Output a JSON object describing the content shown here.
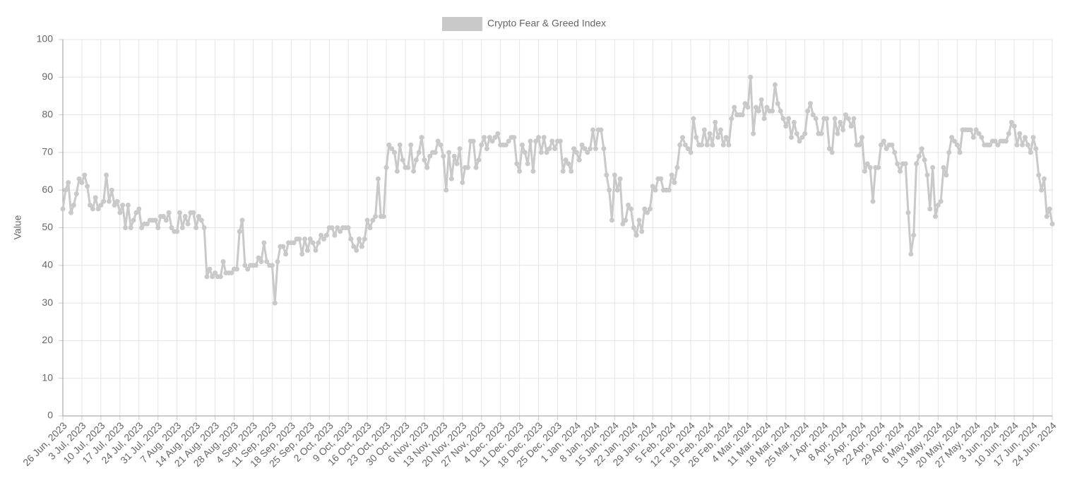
{
  "chart_data": {
    "type": "line",
    "y_label": "Value",
    "ylim": [
      0,
      100
    ],
    "yticks": [
      0,
      10,
      20,
      30,
      40,
      50,
      60,
      70,
      80,
      90,
      100
    ],
    "grid": true,
    "legend": "top",
    "x": [
      "26 Jun, 2023",
      "27 Jun, 2023",
      "28 Jun, 2023",
      "29 Jun, 2023",
      "30 Jun, 2023",
      "1 Jul, 2023",
      "2 Jul, 2023",
      "3 Jul, 2023",
      "4 Jul, 2023",
      "5 Jul, 2023",
      "6 Jul, 2023",
      "7 Jul, 2023",
      "8 Jul, 2023",
      "9 Jul, 2023",
      "10 Jul, 2023",
      "11 Jul, 2023",
      "12 Jul, 2023",
      "13 Jul, 2023",
      "14 Jul, 2023",
      "15 Jul, 2023",
      "16 Jul, 2023",
      "17 Jul, 2023",
      "18 Jul, 2023",
      "19 Jul, 2023",
      "20 Jul, 2023",
      "21 Jul, 2023",
      "22 Jul, 2023",
      "23 Jul, 2023",
      "24 Jul, 2023",
      "25 Jul, 2023",
      "26 Jul, 2023",
      "27 Jul, 2023",
      "28 Jul, 2023",
      "29 Jul, 2023",
      "30 Jul, 2023",
      "31 Jul, 2023",
      "1 Aug, 2023",
      "2 Aug, 2023",
      "3 Aug, 2023",
      "4 Aug, 2023",
      "5 Aug, 2023",
      "6 Aug, 2023",
      "7 Aug, 2023",
      "8 Aug, 2023",
      "9 Aug, 2023",
      "10 Aug, 2023",
      "11 Aug, 2023",
      "12 Aug, 2023",
      "13 Aug, 2023",
      "14 Aug, 2023",
      "15 Aug, 2023",
      "16 Aug, 2023",
      "17 Aug, 2023",
      "18 Aug, 2023",
      "19 Aug, 2023",
      "20 Aug, 2023",
      "21 Aug, 2023",
      "22 Aug, 2023",
      "23 Aug, 2023",
      "24 Aug, 2023",
      "25 Aug, 2023",
      "26 Aug, 2023",
      "27 Aug, 2023",
      "28 Aug, 2023",
      "29 Aug, 2023",
      "30 Aug, 2023",
      "31 Aug, 2023",
      "1 Sep, 2023",
      "2 Sep, 2023",
      "3 Sep, 2023",
      "4 Sep, 2023",
      "5 Sep, 2023",
      "6 Sep, 2023",
      "7 Sep, 2023",
      "8 Sep, 2023",
      "9 Sep, 2023",
      "10 Sep, 2023",
      "11 Sep, 2023",
      "12 Sep, 2023",
      "13 Sep, 2023",
      "14 Sep, 2023",
      "15 Sep, 2023",
      "16 Sep, 2023",
      "17 Sep, 2023",
      "18 Sep, 2023",
      "19 Sep, 2023",
      "20 Sep, 2023",
      "21 Sep, 2023",
      "22 Sep, 2023",
      "23 Sep, 2023",
      "24 Sep, 2023",
      "25 Sep, 2023",
      "26 Sep, 2023",
      "27 Sep, 2023",
      "28 Sep, 2023",
      "29 Sep, 2023",
      "30 Sep, 2023",
      "1 Oct, 2023",
      "2 Oct, 2023",
      "3 Oct, 2023",
      "4 Oct, 2023",
      "5 Oct, 2023",
      "6 Oct, 2023",
      "7 Oct, 2023",
      "8 Oct, 2023",
      "9 Oct, 2023",
      "10 Oct, 2023",
      "11 Oct, 2023",
      "12 Oct, 2023",
      "13 Oct, 2023",
      "14 Oct, 2023",
      "15 Oct, 2023",
      "16 Oct, 2023",
      "17 Oct, 2023",
      "18 Oct, 2023",
      "19 Oct, 2023",
      "20 Oct, 2023",
      "21 Oct, 2023",
      "22 Oct, 2023",
      "23 Oct, 2023",
      "24 Oct, 2023",
      "25 Oct, 2023",
      "26 Oct, 2023",
      "27 Oct, 2023",
      "28 Oct, 2023",
      "29 Oct, 2023",
      "30 Oct, 2023",
      "31 Oct, 2023",
      "1 Nov, 2023",
      "2 Nov, 2023",
      "3 Nov, 2023",
      "4 Nov, 2023",
      "5 Nov, 2023",
      "6 Nov, 2023",
      "7 Nov, 2023",
      "8 Nov, 2023",
      "9 Nov, 2023",
      "10 Nov, 2023",
      "11 Nov, 2023",
      "12 Nov, 2023",
      "13 Nov, 2023",
      "14 Nov, 2023",
      "15 Nov, 2023",
      "16 Nov, 2023",
      "17 Nov, 2023",
      "18 Nov, 2023",
      "19 Nov, 2023",
      "20 Nov, 2023",
      "21 Nov, 2023",
      "22 Nov, 2023",
      "23 Nov, 2023",
      "24 Nov, 2023",
      "25 Nov, 2023",
      "26 Nov, 2023",
      "27 Nov, 2023",
      "28 Nov, 2023",
      "29 Nov, 2023",
      "30 Nov, 2023",
      "1 Dec, 2023",
      "2 Dec, 2023",
      "3 Dec, 2023",
      "4 Dec, 2023",
      "5 Dec, 2023",
      "6 Dec, 2023",
      "7 Dec, 2023",
      "8 Dec, 2023",
      "9 Dec, 2023",
      "10 Dec, 2023",
      "11 Dec, 2023",
      "12 Dec, 2023",
      "13 Dec, 2023",
      "14 Dec, 2023",
      "15 Dec, 2023",
      "16 Dec, 2023",
      "17 Dec, 2023",
      "18 Dec, 2023",
      "19 Dec, 2023",
      "20 Dec, 2023",
      "21 Dec, 2023",
      "22 Dec, 2023",
      "23 Dec, 2023",
      "24 Dec, 2023",
      "25 Dec, 2023",
      "26 Dec, 2023",
      "27 Dec, 2023",
      "28 Dec, 2023",
      "29 Dec, 2023",
      "30 Dec, 2023",
      "31 Dec, 2023",
      "1 Jan, 2024",
      "2 Jan, 2024",
      "3 Jan, 2024",
      "4 Jan, 2024",
      "5 Jan, 2024",
      "6 Jan, 2024",
      "7 Jan, 2024",
      "8 Jan, 2024",
      "9 Jan, 2024",
      "10 Jan, 2024",
      "11 Jan, 2024",
      "12 Jan, 2024",
      "13 Jan, 2024",
      "14 Jan, 2024",
      "15 Jan, 2024",
      "16 Jan, 2024",
      "17 Jan, 2024",
      "18 Jan, 2024",
      "19 Jan, 2024",
      "20 Jan, 2024",
      "21 Jan, 2024",
      "22 Jan, 2024",
      "23 Jan, 2024",
      "24 Jan, 2024",
      "25 Jan, 2024",
      "26 Jan, 2024",
      "27 Jan, 2024",
      "28 Jan, 2024",
      "29 Jan, 2024",
      "30 Jan, 2024",
      "31 Jan, 2024",
      "1 Feb, 2024",
      "2 Feb, 2024",
      "3 Feb, 2024",
      "4 Feb, 2024",
      "5 Feb, 2024",
      "6 Feb, 2024",
      "7 Feb, 2024",
      "8 Feb, 2024",
      "9 Feb, 2024",
      "10 Feb, 2024",
      "11 Feb, 2024",
      "12 Feb, 2024",
      "13 Feb, 2024",
      "14 Feb, 2024",
      "15 Feb, 2024",
      "16 Feb, 2024",
      "17 Feb, 2024",
      "18 Feb, 2024",
      "19 Feb, 2024",
      "20 Feb, 2024",
      "21 Feb, 2024",
      "22 Feb, 2024",
      "23 Feb, 2024",
      "24 Feb, 2024",
      "25 Feb, 2024",
      "26 Feb, 2024",
      "27 Feb, 2024",
      "28 Feb, 2024",
      "29 Feb, 2024",
      "1 Mar, 2024",
      "2 Mar, 2024",
      "3 Mar, 2024",
      "4 Mar, 2024",
      "5 Mar, 2024",
      "6 Mar, 2024",
      "7 Mar, 2024",
      "8 Mar, 2024",
      "9 Mar, 2024",
      "10 Mar, 2024",
      "11 Mar, 2024",
      "12 Mar, 2024",
      "13 Mar, 2024",
      "14 Mar, 2024",
      "15 Mar, 2024",
      "16 Mar, 2024",
      "17 Mar, 2024",
      "18 Mar, 2024",
      "19 Mar, 2024",
      "20 Mar, 2024",
      "21 Mar, 2024",
      "22 Mar, 2024",
      "23 Mar, 2024",
      "24 Mar, 2024",
      "25 Mar, 2024",
      "26 Mar, 2024",
      "27 Mar, 2024",
      "28 Mar, 2024",
      "29 Mar, 2024",
      "30 Mar, 2024",
      "31 Mar, 2024",
      "1 Apr, 2024",
      "2 Apr, 2024",
      "3 Apr, 2024",
      "4 Apr, 2024",
      "5 Apr, 2024",
      "6 Apr, 2024",
      "7 Apr, 2024",
      "8 Apr, 2024",
      "9 Apr, 2024",
      "10 Apr, 2024",
      "11 Apr, 2024",
      "12 Apr, 2024",
      "13 Apr, 2024",
      "14 Apr, 2024",
      "15 Apr, 2024",
      "16 Apr, 2024",
      "17 Apr, 2024",
      "18 Apr, 2024",
      "19 Apr, 2024",
      "20 Apr, 2024",
      "21 Apr, 2024",
      "22 Apr, 2024",
      "23 Apr, 2024",
      "24 Apr, 2024",
      "25 Apr, 2024",
      "26 Apr, 2024",
      "27 Apr, 2024",
      "28 Apr, 2024",
      "29 Apr, 2024",
      "30 Apr, 2024",
      "1 May, 2024",
      "2 May, 2024",
      "3 May, 2024",
      "4 May, 2024",
      "5 May, 2024",
      "6 May, 2024",
      "7 May, 2024",
      "8 May, 2024",
      "9 May, 2024",
      "10 May, 2024",
      "11 May, 2024",
      "12 May, 2024",
      "13 May, 2024",
      "14 May, 2024",
      "15 May, 2024",
      "16 May, 2024",
      "17 May, 2024",
      "18 May, 2024",
      "19 May, 2024",
      "20 May, 2024",
      "21 May, 2024",
      "22 May, 2024",
      "23 May, 2024",
      "24 May, 2024",
      "25 May, 2024",
      "26 May, 2024",
      "27 May, 2024",
      "28 May, 2024",
      "29 May, 2024",
      "30 May, 2024",
      "31 May, 2024",
      "1 Jun, 2024",
      "2 Jun, 2024",
      "3 Jun, 2024",
      "4 Jun, 2024",
      "5 Jun, 2024",
      "6 Jun, 2024",
      "7 Jun, 2024",
      "8 Jun, 2024",
      "9 Jun, 2024",
      "10 Jun, 2024",
      "11 Jun, 2024",
      "12 Jun, 2024",
      "13 Jun, 2024",
      "14 Jun, 2024",
      "15 Jun, 2024",
      "16 Jun, 2024",
      "17 Jun, 2024",
      "18 Jun, 2024",
      "19 Jun, 2024",
      "20 Jun, 2024",
      "21 Jun, 2024",
      "22 Jun, 2024",
      "23 Jun, 2024",
      "24 Jun, 2024"
    ],
    "series": [
      {
        "name": "Crypto Fear & Greed Index",
        "color": "#c9c9c9",
        "values": [
          55,
          60,
          62,
          54,
          56,
          59,
          63,
          62,
          64,
          61,
          56,
          55,
          58,
          55,
          56,
          57,
          64,
          57,
          60,
          56,
          57,
          54,
          56,
          50,
          56,
          50,
          52,
          54,
          55,
          50,
          51,
          51,
          52,
          52,
          52,
          50,
          53,
          53,
          52,
          54,
          50,
          49,
          49,
          54,
          50,
          53,
          51,
          54,
          54,
          50,
          53,
          52,
          50,
          37,
          39,
          37,
          38,
          37,
          37,
          41,
          38,
          38,
          38,
          39,
          39,
          49,
          52,
          40,
          39,
          40,
          40,
          40,
          42,
          41,
          46,
          41,
          40,
          40,
          30,
          41,
          45,
          45,
          43,
          46,
          46,
          46,
          47,
          47,
          43,
          47,
          44,
          47,
          46,
          44,
          46,
          48,
          47,
          48,
          50,
          50,
          48,
          50,
          49,
          50,
          50,
          50,
          47,
          45,
          44,
          47,
          45,
          47,
          52,
          50,
          52,
          53,
          63,
          53,
          53,
          66,
          72,
          71,
          70,
          65,
          72,
          68,
          66,
          66,
          72,
          65,
          68,
          70,
          74,
          68,
          66,
          69,
          70,
          70,
          73,
          72,
          69,
          60,
          70,
          63,
          69,
          67,
          71,
          62,
          66,
          66,
          73,
          73,
          66,
          68,
          72,
          74,
          71,
          74,
          73,
          74,
          75,
          72,
          72,
          72,
          73,
          74,
          74,
          67,
          65,
          72,
          70,
          67,
          73,
          65,
          73,
          74,
          70,
          74,
          70,
          71,
          73,
          71,
          73,
          73,
          65,
          68,
          67,
          65,
          71,
          70,
          68,
          72,
          71,
          70,
          71,
          76,
          71,
          76,
          76,
          71,
          64,
          60,
          52,
          64,
          60,
          63,
          51,
          52,
          56,
          55,
          50,
          48,
          52,
          49,
          55,
          54,
          55,
          61,
          60,
          63,
          63,
          60,
          60,
          60,
          64,
          62,
          66,
          72,
          74,
          72,
          71,
          70,
          79,
          74,
          72,
          72,
          76,
          72,
          75,
          72,
          78,
          74,
          76,
          72,
          74,
          72,
          79,
          82,
          80,
          80,
          80,
          83,
          82,
          90,
          75,
          82,
          81,
          84,
          79,
          82,
          81,
          81,
          88,
          83,
          81,
          79,
          77,
          79,
          74,
          78,
          75,
          73,
          74,
          75,
          81,
          83,
          80,
          79,
          75,
          75,
          79,
          79,
          71,
          70,
          79,
          75,
          78,
          76,
          80,
          79,
          77,
          79,
          72,
          72,
          74,
          65,
          67,
          66,
          57,
          66,
          66,
          72,
          73,
          71,
          72,
          72,
          70,
          67,
          65,
          67,
          67,
          54,
          43,
          48,
          67,
          69,
          71,
          68,
          64,
          55,
          66,
          53,
          56,
          57,
          66,
          64,
          70,
          74,
          73,
          72,
          70,
          76,
          76,
          76,
          76,
          74,
          76,
          75,
          74,
          72,
          72,
          72,
          73,
          73,
          72,
          73,
          73,
          73,
          75,
          78,
          77,
          72,
          75,
          72,
          74,
          72,
          70,
          74,
          71,
          64,
          60,
          63,
          53,
          55,
          51
        ]
      }
    ]
  }
}
